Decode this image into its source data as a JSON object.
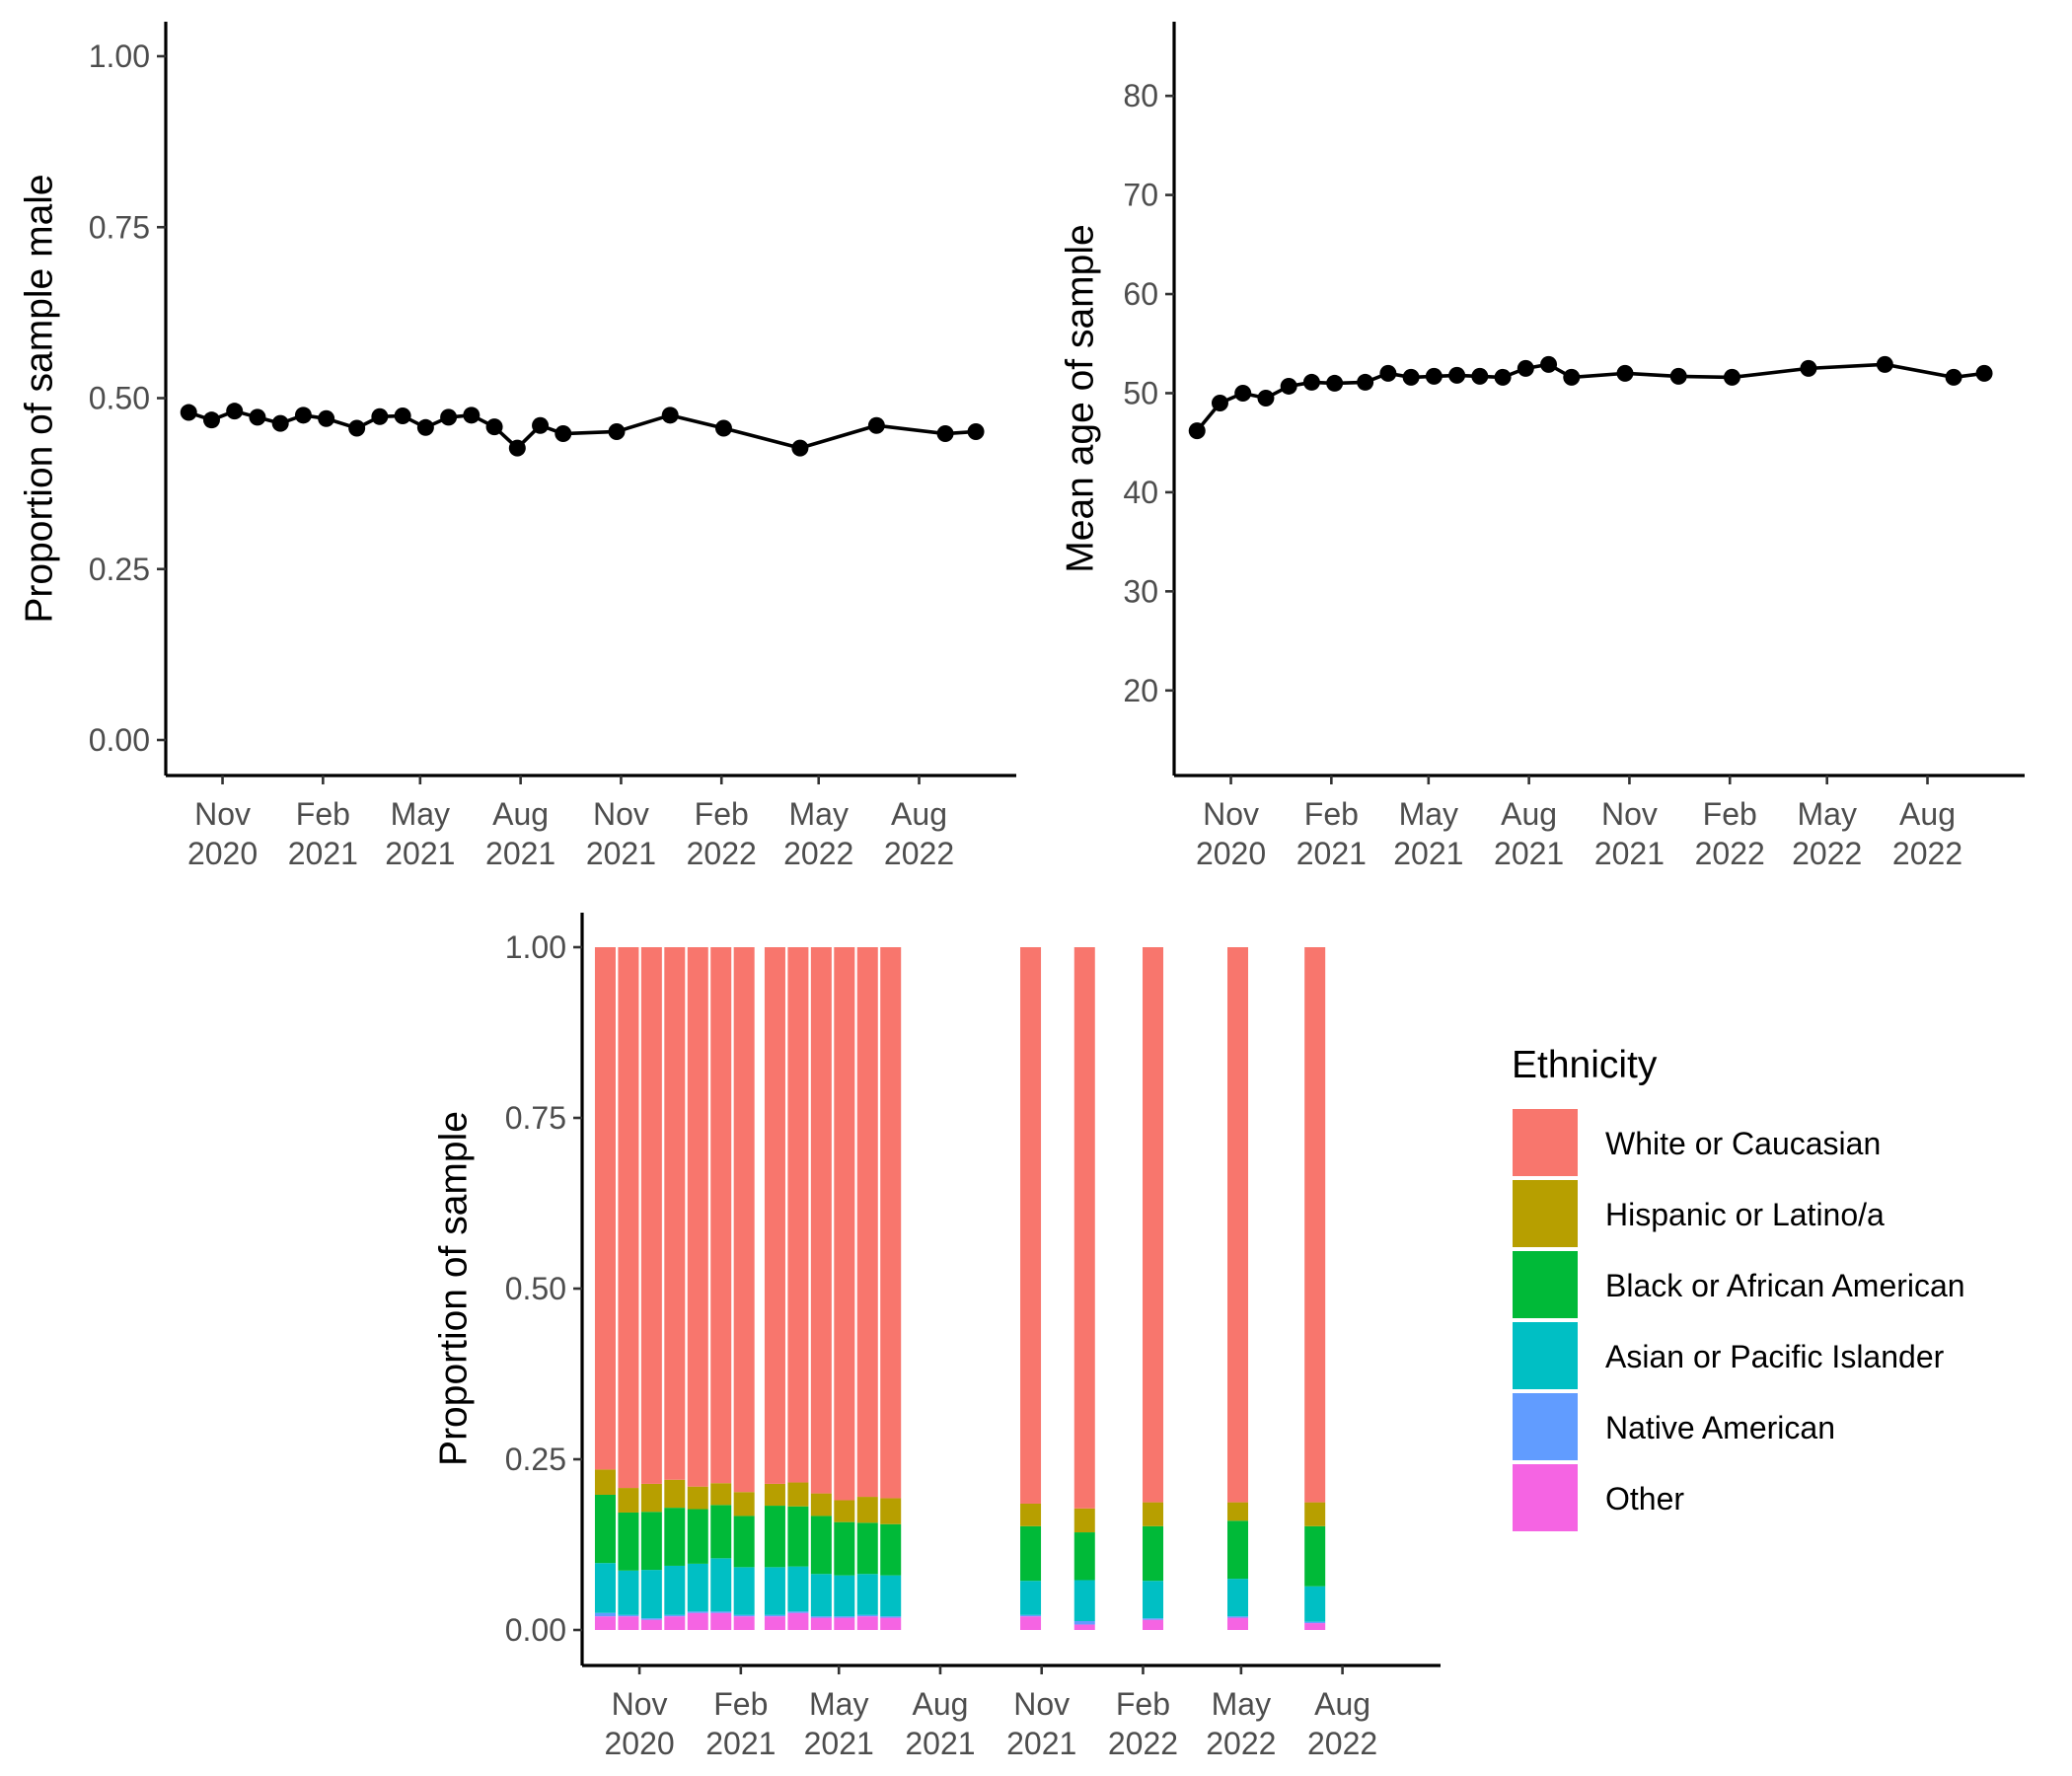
{
  "chart_data": [
    {
      "type": "line",
      "panel": "top-left",
      "xlabel": "",
      "ylabel": "Proportion of sample male",
      "ylim": [
        0.0,
        1.0
      ],
      "yticks": [
        0.0,
        0.25,
        0.5,
        0.75,
        1.0
      ],
      "ytick_labels": [
        "0.00",
        "0.25",
        "0.50",
        "0.75",
        "1.00"
      ],
      "xlim": [
        "2020-09-10",
        "2022-10-29"
      ],
      "xticks": [
        "2020-11-01",
        "2021-02-01",
        "2021-05-01",
        "2021-08-01",
        "2021-11-01",
        "2022-02-01",
        "2022-05-01",
        "2022-08-01"
      ],
      "xtick_labels": [
        [
          "Nov",
          "2020"
        ],
        [
          "Feb",
          "2021"
        ],
        [
          "May",
          "2021"
        ],
        [
          "Aug",
          "2021"
        ],
        [
          "Nov",
          "2021"
        ],
        [
          "Feb",
          "2022"
        ],
        [
          "May",
          "2022"
        ],
        [
          "Aug",
          "2022"
        ]
      ],
      "grid": false,
      "series": [
        {
          "x": [
            "2020-10-01",
            "2020-10-22",
            "2020-11-12",
            "2020-12-03",
            "2020-12-24",
            "2021-01-14",
            "2021-02-04",
            "2021-03-04",
            "2021-03-25",
            "2021-04-15",
            "2021-05-06",
            "2021-05-27",
            "2021-06-17",
            "2021-07-08",
            "2021-07-29",
            "2021-08-19",
            "2021-09-09",
            "2021-10-28",
            "2021-12-16",
            "2022-02-03",
            "2022-04-14",
            "2022-06-23",
            "2022-08-25",
            "2022-09-22"
          ],
          "values": [
            0.479,
            0.468,
            0.481,
            0.472,
            0.463,
            0.475,
            0.47,
            0.456,
            0.473,
            0.474,
            0.457,
            0.472,
            0.475,
            0.458,
            0.427,
            0.46,
            0.448,
            0.451,
            0.475,
            0.456,
            0.427,
            0.46,
            0.448,
            0.451
          ]
        }
      ]
    },
    {
      "type": "line",
      "panel": "top-right",
      "xlabel": "",
      "ylabel": "Mean age of sample",
      "ylim": [
        15,
        84
      ],
      "yticks": [
        20,
        30,
        40,
        50,
        60,
        70,
        80
      ],
      "ytick_labels": [
        "20",
        "30",
        "40",
        "50",
        "60",
        "70",
        "80"
      ],
      "xlim": [
        "2020-09-10",
        "2022-10-29"
      ],
      "xticks": [
        "2020-11-01",
        "2021-02-01",
        "2021-05-01",
        "2021-08-01",
        "2021-11-01",
        "2022-02-01",
        "2022-05-01",
        "2022-08-01"
      ],
      "xtick_labels": [
        [
          "Nov",
          "2020"
        ],
        [
          "Feb",
          "2021"
        ],
        [
          "May",
          "2021"
        ],
        [
          "Aug",
          "2021"
        ],
        [
          "Nov",
          "2021"
        ],
        [
          "Feb",
          "2022"
        ],
        [
          "May",
          "2022"
        ],
        [
          "Aug",
          "2022"
        ]
      ],
      "grid": false,
      "series": [
        {
          "x": [
            "2020-10-01",
            "2020-10-22",
            "2020-11-12",
            "2020-12-03",
            "2020-12-24",
            "2021-01-14",
            "2021-02-04",
            "2021-03-04",
            "2021-03-25",
            "2021-04-15",
            "2021-05-06",
            "2021-05-27",
            "2021-06-17",
            "2021-07-08",
            "2021-07-29",
            "2021-08-19",
            "2021-09-09",
            "2021-10-28",
            "2021-12-16",
            "2022-02-03",
            "2022-04-14",
            "2022-06-23",
            "2022-08-25",
            "2022-09-22"
          ],
          "values": [
            46.2,
            49.0,
            50.0,
            49.5,
            50.7,
            51.1,
            51.0,
            51.1,
            52.0,
            51.6,
            51.7,
            51.8,
            51.7,
            51.6,
            52.5,
            52.9,
            51.6,
            52.0,
            51.7,
            51.6,
            52.5,
            52.9,
            51.6,
            52.0
          ]
        }
      ]
    },
    {
      "type": "bar",
      "stacked": true,
      "panel": "bottom",
      "xlabel": "",
      "ylabel": "Proportion of sample",
      "ylim": [
        0.0,
        1.0
      ],
      "yticks": [
        0.0,
        0.25,
        0.5,
        0.75,
        1.0
      ],
      "ytick_labels": [
        "0.00",
        "0.25",
        "0.50",
        "0.75",
        "1.00"
      ],
      "xlim": [
        "2020-09-10",
        "2022-10-29"
      ],
      "xticks": [
        "2020-11-01",
        "2021-02-01",
        "2021-05-01",
        "2021-08-01",
        "2021-11-01",
        "2022-02-01",
        "2022-05-01",
        "2022-08-01"
      ],
      "xtick_labels": [
        [
          "Nov",
          "2020"
        ],
        [
          "Feb",
          "2021"
        ],
        [
          "May",
          "2021"
        ],
        [
          "Aug",
          "2021"
        ],
        [
          "Nov",
          "2021"
        ],
        [
          "Feb",
          "2022"
        ],
        [
          "May",
          "2022"
        ],
        [
          "Aug",
          "2022"
        ]
      ],
      "grid": false,
      "legend": {
        "title": "Ethnicity",
        "position": "right"
      },
      "categories": [
        "2020-10-01",
        "2020-10-22",
        "2020-11-12",
        "2020-12-03",
        "2020-12-24",
        "2021-01-14",
        "2021-02-04",
        "2021-03-04",
        "2021-03-25",
        "2021-04-15",
        "2021-05-06",
        "2021-05-27",
        "2021-06-17",
        "2021-10-22",
        "2021-12-10",
        "2022-02-10",
        "2022-04-28",
        "2022-07-07"
      ],
      "series": [
        {
          "name": "Other",
          "color": "#F564E3",
          "values": [
            0.02,
            0.02,
            0.015,
            0.02,
            0.025,
            0.025,
            0.02,
            0.02,
            0.025,
            0.018,
            0.018,
            0.02,
            0.018,
            0.02,
            0.008,
            0.015,
            0.018,
            0.01
          ]
        },
        {
          "name": "Native American",
          "color": "#619CFF",
          "values": [
            0.005,
            0.002,
            0.002,
            0.002,
            0.002,
            0.002,
            0.002,
            0.002,
            0.002,
            0.002,
            0.002,
            0.002,
            0.002,
            0.002,
            0.005,
            0.002,
            0.002,
            0.002
          ]
        },
        {
          "name": "Asian or Pacific Islander",
          "color": "#00BFC4",
          "values": [
            0.073,
            0.065,
            0.071,
            0.072,
            0.07,
            0.078,
            0.07,
            0.07,
            0.066,
            0.062,
            0.06,
            0.06,
            0.06,
            0.05,
            0.06,
            0.055,
            0.055,
            0.052
          ]
        },
        {
          "name": "Black or African American",
          "color": "#00BA38",
          "values": [
            0.1,
            0.085,
            0.085,
            0.085,
            0.08,
            0.078,
            0.075,
            0.09,
            0.088,
            0.085,
            0.078,
            0.075,
            0.075,
            0.08,
            0.07,
            0.08,
            0.085,
            0.088
          ]
        },
        {
          "name": "Hispanic or Latino/a",
          "color": "#B79F00",
          "values": [
            0.037,
            0.036,
            0.041,
            0.041,
            0.033,
            0.032,
            0.035,
            0.032,
            0.035,
            0.033,
            0.032,
            0.038,
            0.038,
            0.033,
            0.035,
            0.035,
            0.027,
            0.035
          ]
        },
        {
          "name": "White or Caucasian",
          "color": "#F8766D",
          "values": [
            0.765,
            0.792,
            0.786,
            0.78,
            0.79,
            0.785,
            0.798,
            0.786,
            0.784,
            0.8,
            0.81,
            0.805,
            0.807,
            0.815,
            0.822,
            0.813,
            0.813,
            0.813
          ]
        }
      ]
    }
  ]
}
